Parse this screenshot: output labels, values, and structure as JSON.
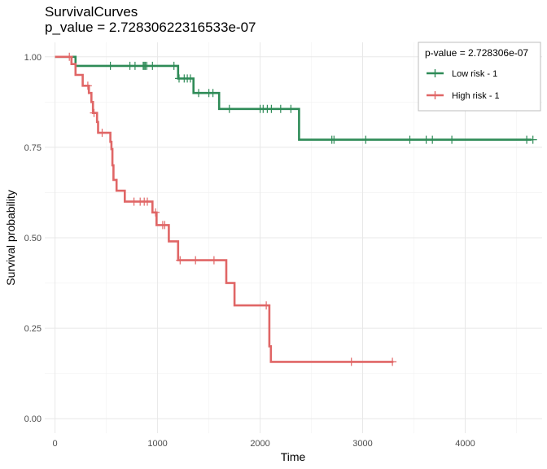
{
  "chart_data": {
    "type": "line",
    "title": "SurvivalCurves",
    "subtitle": "p_value = 2.72830622316533e-07",
    "xlabel": "Time",
    "ylabel": "Survival probability",
    "xlim": [
      -100,
      4750
    ],
    "ylim": [
      -0.04,
      1.04
    ],
    "x_ticks": [
      0,
      1000,
      2000,
      3000,
      4000
    ],
    "x_tick_labels": [
      "0",
      "1000",
      "2000",
      "3000",
      "4000"
    ],
    "y_ticks": [
      0,
      0.25,
      0.5,
      0.75,
      1.0
    ],
    "y_tick_labels": [
      "0.00",
      "0.25",
      "0.50",
      "0.75",
      "1.00"
    ],
    "grid": true,
    "legend": {
      "title": "p-value = 2.728306e-07",
      "placement": "top-right"
    },
    "series": [
      {
        "name": "Low risk - 1",
        "color": "#2e8b57",
        "steps": [
          [
            0,
            1.0
          ],
          [
            200,
            0.975
          ],
          [
            1200,
            0.94
          ],
          [
            1350,
            0.9
          ],
          [
            1600,
            0.856
          ],
          [
            2380,
            0.771
          ],
          [
            4650,
            0.771
          ]
        ],
        "censor_times": [
          540,
          730,
          780,
          860,
          870,
          880,
          895,
          950,
          1160,
          1210,
          1260,
          1290,
          1320,
          1400,
          1500,
          1540,
          1700,
          2000,
          2030,
          2070,
          2110,
          2200,
          2300,
          2700,
          2720,
          3030,
          3460,
          3620,
          3680,
          3870,
          4600,
          4660
        ]
      },
      {
        "name": "High risk - 1",
        "color": "#e06666",
        "steps": [
          [
            0,
            1.0
          ],
          [
            160,
            0.98
          ],
          [
            200,
            0.95
          ],
          [
            270,
            0.92
          ],
          [
            330,
            0.9
          ],
          [
            355,
            0.875
          ],
          [
            370,
            0.845
          ],
          [
            410,
            0.82
          ],
          [
            420,
            0.79
          ],
          [
            540,
            0.765
          ],
          [
            550,
            0.745
          ],
          [
            560,
            0.7
          ],
          [
            570,
            0.66
          ],
          [
            600,
            0.63
          ],
          [
            680,
            0.6
          ],
          [
            950,
            0.57
          ],
          [
            990,
            0.535
          ],
          [
            1110,
            0.49
          ],
          [
            1200,
            0.438
          ],
          [
            1670,
            0.375
          ],
          [
            1750,
            0.313
          ],
          [
            2090,
            0.2
          ],
          [
            2105,
            0.157
          ],
          [
            3300,
            0.157
          ]
        ],
        "censor_times": [
          140,
          320,
          380,
          460,
          770,
          830,
          870,
          900,
          980,
          1050,
          1070,
          1220,
          1370,
          1550,
          2060,
          2890,
          3290
        ]
      }
    ]
  }
}
